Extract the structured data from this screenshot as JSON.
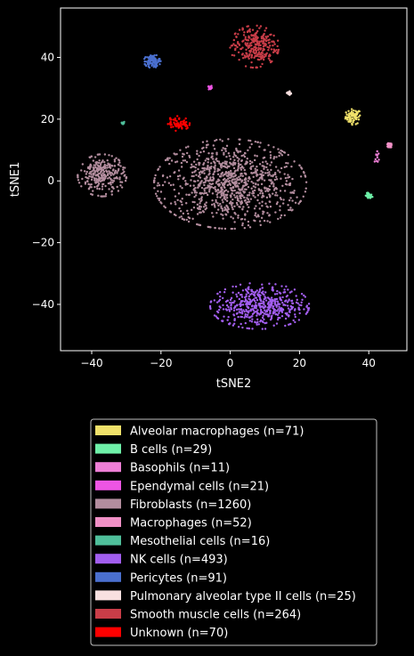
{
  "chart_data": {
    "type": "scatter",
    "title": "",
    "xlabel": "tSNE2",
    "ylabel": "tSNE1",
    "xlim": [
      -49,
      51
    ],
    "ylim": [
      -55,
      56
    ],
    "xticks": [
      -40,
      -20,
      0,
      20,
      40
    ],
    "yticks": [
      -40,
      -20,
      0,
      20,
      40
    ],
    "grid": false,
    "legend_position": "below",
    "background": "#000000",
    "series": [
      {
        "name": "Alveolar macrophages (n=71)",
        "n": 71,
        "color": "#f0e16a",
        "clusters": [
          {
            "cx": 35.5,
            "cy": 20.8,
            "sx": 1.1,
            "sy": 1.2
          }
        ]
      },
      {
        "name": "B cells (n=29)",
        "n": 29,
        "color": "#6ef0a8",
        "clusters": [
          {
            "cx": 40.0,
            "cy": -4.9,
            "sx": 0.5,
            "sy": 0.5
          }
        ]
      },
      {
        "name": "Basophils (n=11)",
        "n": 11,
        "color": "#ee7fd6",
        "clusters": [
          {
            "cx": 42.4,
            "cy": 7.9,
            "sx": 0.4,
            "sy": 1.2
          }
        ]
      },
      {
        "name": "Ependymal cells (n=21)",
        "n": 21,
        "color": "#ee55e4",
        "clusters": [
          {
            "cx": -5.8,
            "cy": 30.2,
            "sx": 0.25,
            "sy": 0.4
          }
        ]
      },
      {
        "name": "Fibroblasts (n=1260)",
        "n": 1260,
        "color": "#b38d9e",
        "clusters": [
          {
            "cx": 0.0,
            "cy": -1.0,
            "sx": 10.0,
            "sy": 6.6,
            "w": 0.78
          },
          {
            "cx": -37.0,
            "cy": 1.8,
            "sx": 3.2,
            "sy": 3.1,
            "w": 0.22
          }
        ]
      },
      {
        "name": "Macrophages (n=52)",
        "n": 52,
        "color": "#f090c6",
        "clusters": [
          {
            "cx": 46.0,
            "cy": 11.5,
            "sx": 0.3,
            "sy": 0.4
          }
        ]
      },
      {
        "name": "Mesothelial cells (n=16)",
        "n": 16,
        "color": "#4fbf9b",
        "clusters": [
          {
            "cx": -31.0,
            "cy": 18.8,
            "sx": 0.2,
            "sy": 0.3
          }
        ]
      },
      {
        "name": "NK cells (n=493)",
        "n": 493,
        "color": "#a25eef",
        "clusters": [
          {
            "cx": 8.5,
            "cy": -40.5,
            "sx": 6.5,
            "sy": 3.4
          }
        ]
      },
      {
        "name": "Pericytes (n=91)",
        "n": 91,
        "color": "#4a6fce",
        "clusters": [
          {
            "cx": -22.5,
            "cy": 38.8,
            "sx": 1.1,
            "sy": 1.0
          }
        ]
      },
      {
        "name": "Pulmonary alveolar type II cells (n=25)",
        "n": 25,
        "color": "#f8e0e0",
        "clusters": [
          {
            "cx": 17.0,
            "cy": 28.4,
            "sx": 0.3,
            "sy": 0.3
          }
        ]
      },
      {
        "name": "Smooth muscle cells (n=264)",
        "n": 264,
        "color": "#c93d48",
        "clusters": [
          {
            "cx": 7.0,
            "cy": 43.5,
            "sx": 3.2,
            "sy": 3.1
          }
        ]
      },
      {
        "name": "Unknown (n=70)",
        "n": 70,
        "color": "#ff0000",
        "clusters": [
          {
            "cx": -15.0,
            "cy": 18.6,
            "sx": 1.5,
            "sy": 1.1
          }
        ]
      }
    ]
  }
}
